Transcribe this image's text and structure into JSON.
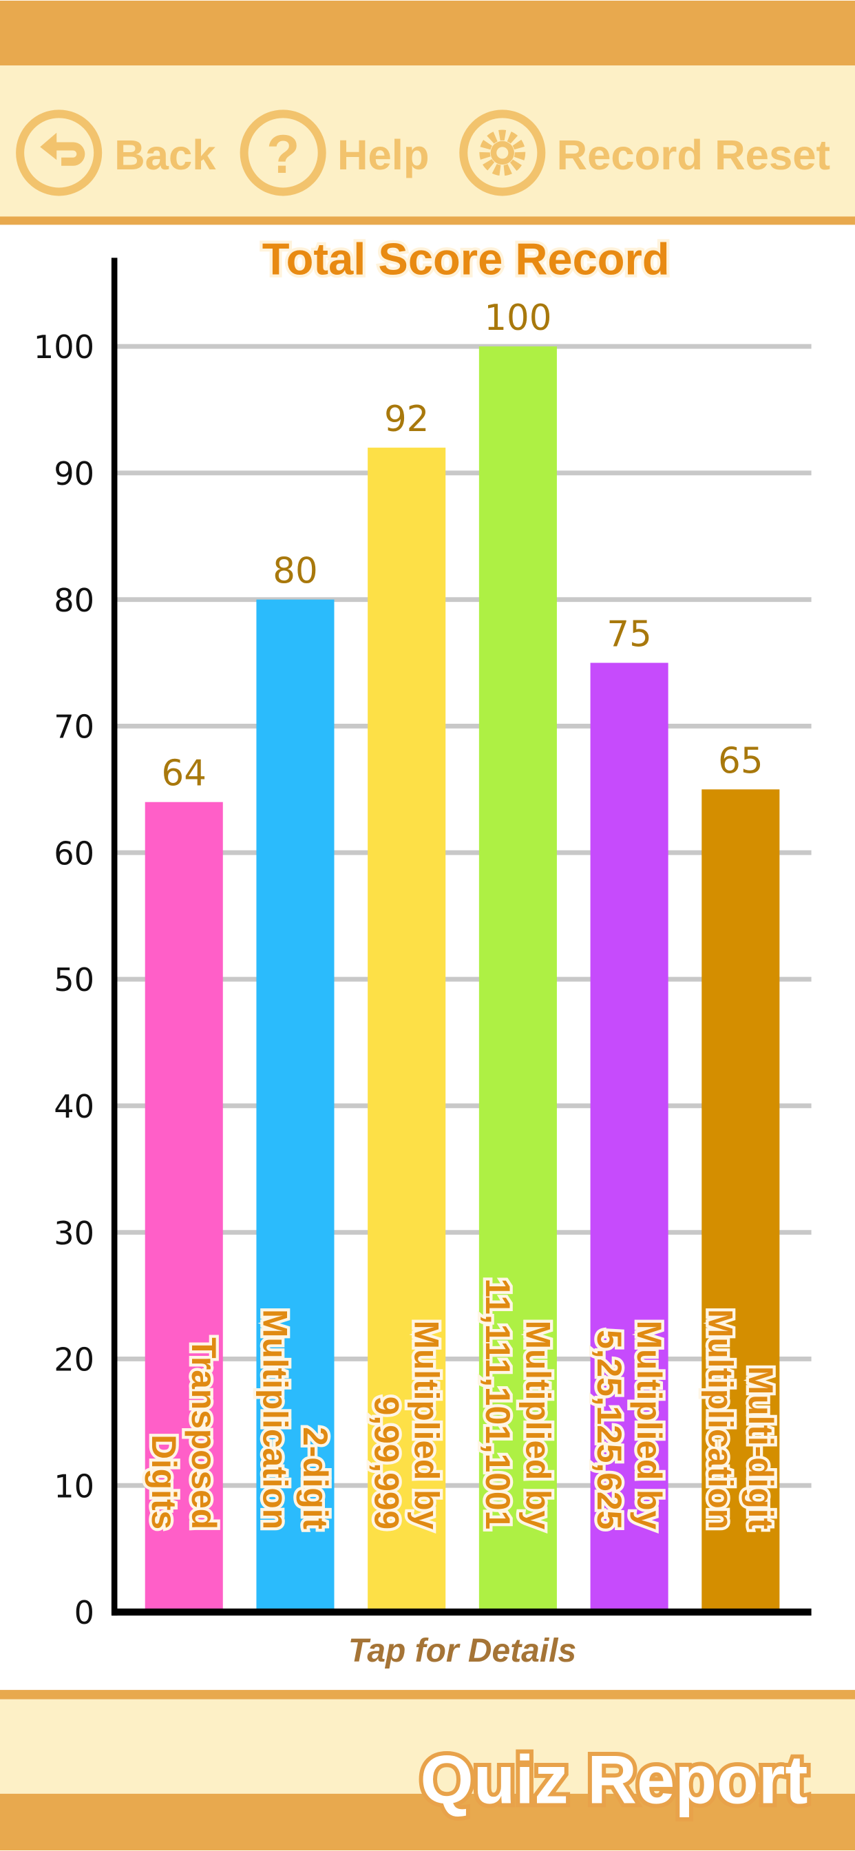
{
  "header": {
    "buttons": [
      "Back",
      "Help",
      "Record Reset"
    ]
  },
  "chart_data": {
    "type": "bar",
    "title": "Total Score Record",
    "categories": [
      [
        "Transposed",
        "Digits"
      ],
      [
        "2-digit",
        "Multiplication"
      ],
      [
        "Multiplied by",
        "9,99,999"
      ],
      [
        "Multiplied by",
        "11,111,101,1001"
      ],
      [
        "Multiplied by",
        "5,25,125,625"
      ],
      [
        "Multi-digit",
        "Multiplication"
      ]
    ],
    "values": [
      64,
      80,
      92,
      100,
      75,
      65
    ],
    "colors": [
      "#ff5fc8",
      "#2bbbfc",
      "#fde047",
      "#aef044",
      "#c64bfc",
      "#d48e00"
    ],
    "ylim": [
      0,
      107
    ],
    "yticks": [
      0,
      10,
      20,
      30,
      40,
      50,
      60,
      70,
      80,
      90,
      100
    ],
    "grid": true,
    "xlabel": "Tap for Details"
  },
  "footer": {
    "title": "Quiz Report"
  }
}
